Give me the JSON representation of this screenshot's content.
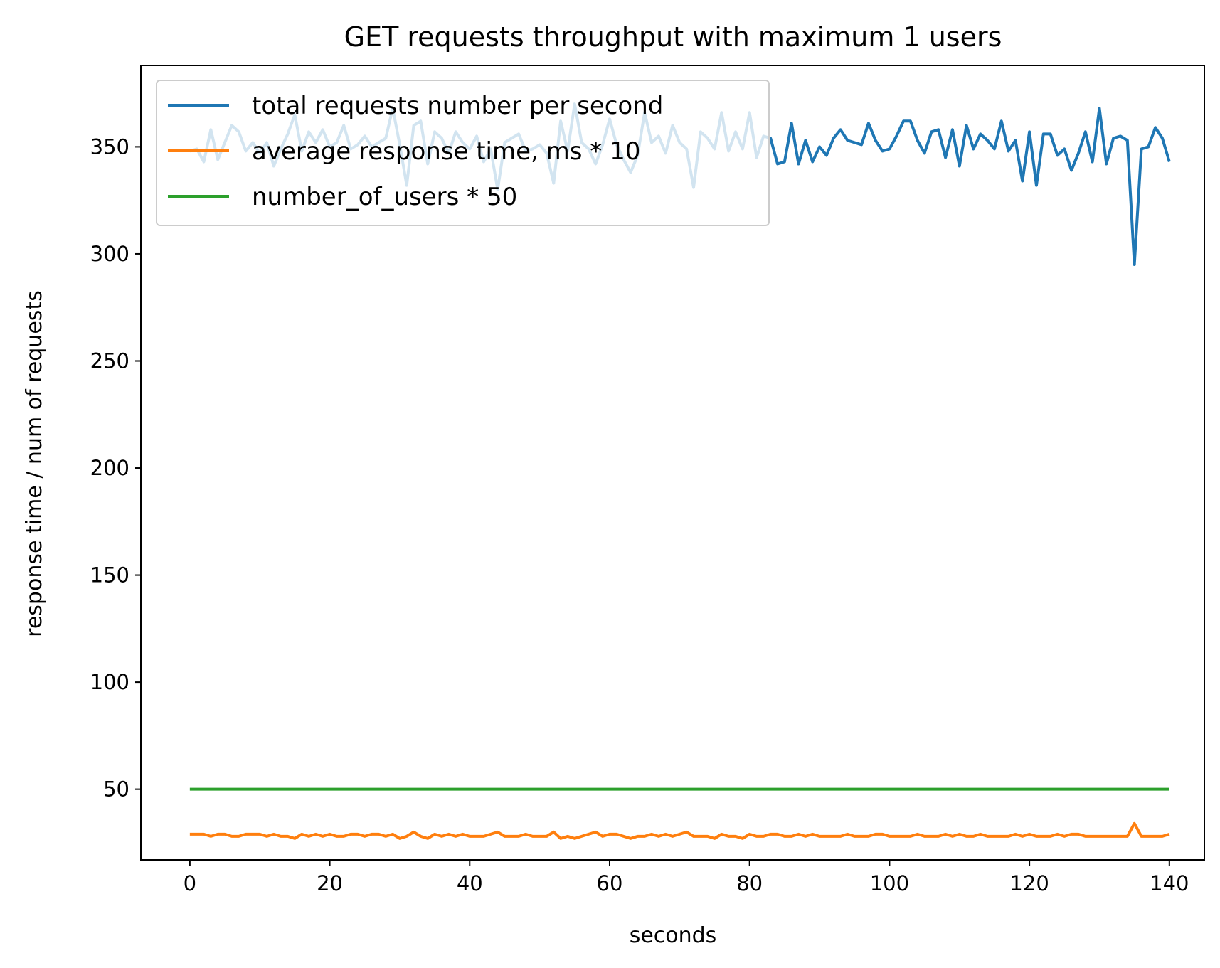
{
  "chart_data": {
    "type": "line",
    "title": "GET requests throughput with maximum 1 users",
    "xlabel": "seconds",
    "ylabel": "response time / num of requests",
    "xlim": [
      -7,
      145
    ],
    "ylim": [
      17,
      388
    ],
    "xticks": [
      0,
      20,
      40,
      60,
      80,
      100,
      120,
      140
    ],
    "yticks": [
      50,
      100,
      150,
      200,
      250,
      300,
      350
    ],
    "grid": false,
    "legend_position": "top-left",
    "series": [
      {
        "name": "total requests number per second",
        "color": "#1f77b4",
        "values": [
          348,
          349,
          343,
          358,
          344,
          352,
          360,
          357,
          348,
          352,
          347,
          352,
          341,
          349,
          356,
          365,
          348,
          357,
          352,
          358,
          350,
          352,
          360,
          349,
          351,
          355,
          350,
          352,
          354,
          368,
          351,
          332,
          360,
          362,
          342,
          357,
          354,
          347,
          357,
          352,
          349,
          355,
          343,
          349,
          330,
          352,
          354,
          356,
          348,
          349,
          351,
          347,
          333,
          362,
          348,
          370,
          352,
          349,
          342,
          351,
          363,
          351,
          344,
          338,
          346,
          366,
          352,
          355,
          347,
          360,
          352,
          349,
          331,
          357,
          354,
          349,
          366,
          348,
          357,
          349,
          366,
          345,
          355,
          354,
          342,
          343,
          361,
          342,
          353,
          343,
          350,
          346,
          354,
          358,
          353,
          352,
          351,
          361,
          353,
          348,
          349,
          355,
          362,
          362,
          353,
          347,
          357,
          358,
          345,
          358,
          341,
          360,
          349,
          356,
          353,
          349,
          362,
          348,
          353,
          334,
          357,
          332,
          356,
          356,
          346,
          349,
          339,
          347,
          357,
          343,
          368,
          342,
          354,
          355,
          353,
          295,
          349,
          350,
          359,
          354,
          343
        ]
      },
      {
        "name": "average response time, ms * 10",
        "color": "#ff7f0e",
        "values": [
          29,
          29,
          29,
          28,
          29,
          29,
          28,
          28,
          29,
          29,
          29,
          28,
          29,
          28,
          28,
          27,
          29,
          28,
          29,
          28,
          29,
          28,
          28,
          29,
          29,
          28,
          29,
          29,
          28,
          29,
          27,
          28,
          30,
          28,
          27,
          29,
          28,
          29,
          28,
          29,
          28,
          28,
          28,
          29,
          30,
          28,
          28,
          28,
          29,
          28,
          28,
          28,
          30,
          27,
          28,
          27,
          28,
          29,
          30,
          28,
          29,
          29,
          28,
          27,
          28,
          28,
          29,
          28,
          29,
          28,
          29,
          30,
          28,
          28,
          28,
          27,
          29,
          28,
          28,
          27,
          29,
          28,
          28,
          29,
          29,
          28,
          28,
          29,
          28,
          29,
          28,
          28,
          28,
          28,
          29,
          28,
          28,
          28,
          29,
          29,
          28,
          28,
          28,
          28,
          29,
          28,
          28,
          28,
          29,
          28,
          29,
          28,
          28,
          29,
          28,
          28,
          28,
          28,
          29,
          28,
          29,
          28,
          28,
          28,
          29,
          28,
          29,
          29,
          28,
          28,
          28,
          28,
          28,
          28,
          28,
          34,
          28,
          28,
          28,
          28,
          29
        ]
      },
      {
        "name": "number_of_users * 50",
        "color": "#2ca02c",
        "values": [
          50,
          50,
          50,
          50,
          50,
          50,
          50,
          50,
          50,
          50,
          50,
          50,
          50,
          50,
          50,
          50,
          50,
          50,
          50,
          50,
          50,
          50,
          50,
          50,
          50,
          50,
          50,
          50,
          50,
          50,
          50,
          50,
          50,
          50,
          50,
          50,
          50,
          50,
          50,
          50,
          50,
          50,
          50,
          50,
          50,
          50,
          50,
          50,
          50,
          50,
          50,
          50,
          50,
          50,
          50,
          50,
          50,
          50,
          50,
          50,
          50,
          50,
          50,
          50,
          50,
          50,
          50,
          50,
          50,
          50,
          50,
          50,
          50,
          50,
          50,
          50,
          50,
          50,
          50,
          50,
          50,
          50,
          50,
          50,
          50,
          50,
          50,
          50,
          50,
          50,
          50,
          50,
          50,
          50,
          50,
          50,
          50,
          50,
          50,
          50,
          50,
          50,
          50,
          50,
          50,
          50,
          50,
          50,
          50,
          50,
          50,
          50,
          50,
          50,
          50,
          50,
          50,
          50,
          50,
          50,
          50,
          50,
          50,
          50,
          50,
          50,
          50,
          50,
          50,
          50,
          50,
          50,
          50,
          50,
          50,
          50,
          50,
          50,
          50,
          50,
          50
        ]
      }
    ]
  }
}
